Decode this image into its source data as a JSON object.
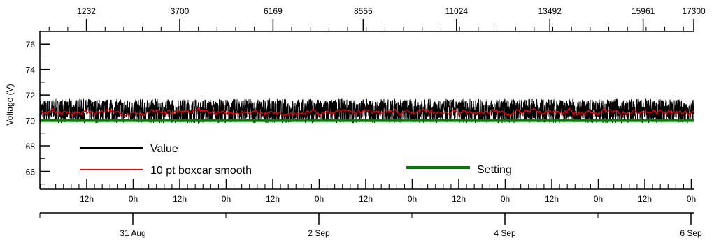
{
  "chart_data": {
    "type": "line",
    "title": "",
    "ylabel": "Voltage (V)",
    "ylim": [
      64.6,
      77.0
    ],
    "yticks": [
      66,
      68,
      70,
      72,
      74,
      76
    ],
    "grid": false,
    "top_axis": {
      "ticks": [
        1232,
        3700,
        6169,
        8555,
        11024,
        13492,
        15961,
        17300
      ],
      "labels": [
        "1232",
        "3700",
        "6169",
        "8555",
        "11024",
        "13492",
        "15961",
        "17300"
      ]
    },
    "time_axis_hours": {
      "labels": [
        "12h",
        "0h",
        "12h",
        "0h",
        "12h",
        "0h",
        "12h",
        "0h",
        "12h",
        "0h",
        "12h",
        "0h",
        "12h",
        "0h"
      ]
    },
    "date_axis": {
      "labels": [
        "31 Aug",
        "2 Sep",
        "4 Sep",
        "6 Sep"
      ]
    },
    "series": [
      {
        "name": "Value",
        "color": "#000000",
        "min": 69.8,
        "max": 71.7,
        "mean": 70.6
      },
      {
        "name": "10 pt boxcar smooth",
        "color": "#ff0000",
        "min": 70.3,
        "max": 71.2,
        "mean": 70.65
      },
      {
        "name": "Setting",
        "color": "#008000",
        "value": 70.0
      }
    ],
    "legend": [
      {
        "label": "Value",
        "color": "#000000"
      },
      {
        "label": "10 pt boxcar smooth",
        "color": "#ff0000"
      },
      {
        "label": "Setting",
        "color": "#008000"
      }
    ]
  }
}
